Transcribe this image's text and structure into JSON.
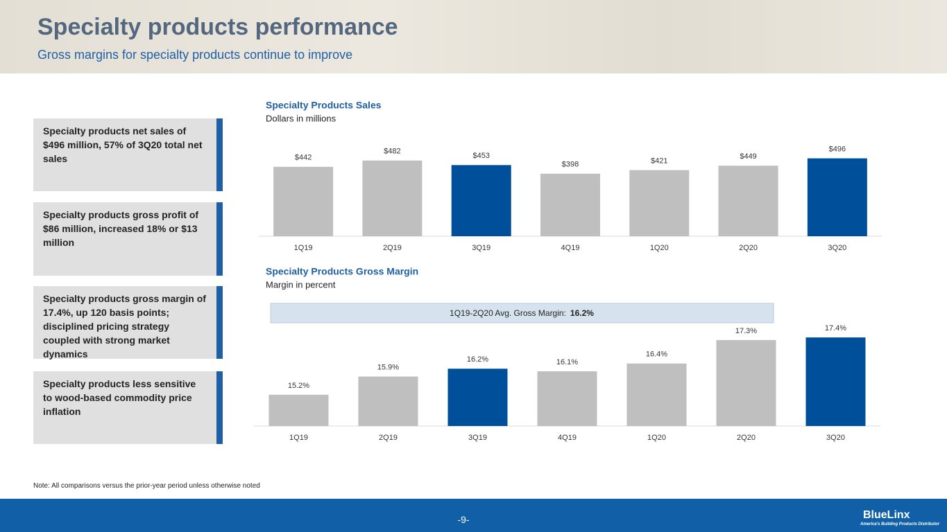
{
  "header": {
    "title": "Specialty products performance",
    "subtitle": "Gross margins for specialty products continue to improve"
  },
  "callouts": [
    "Specialty products net sales of $496 million, 57% of 3Q20 total net sales",
    "Specialty products gross profit of $86 million, increased 18% or $13 million",
    "Specialty products gross margin of 17.4%, up 120 basis points; disciplined pricing strategy coupled with strong market dynamics",
    "Specialty products less sensitive to wood-based commodity price inflation"
  ],
  "note": "Note:  All comparisons versus the prior-year period unless otherwise noted",
  "footer": {
    "page": "-9-",
    "logo": "BlueLinx",
    "tagline": "America's Building Products Distributor"
  },
  "chart_data": [
    {
      "type": "bar",
      "title": "Specialty Products Sales",
      "subtitle": "Dollars in millions",
      "categories": [
        "1Q19",
        "2Q19",
        "3Q19",
        "4Q19",
        "1Q20",
        "2Q20",
        "3Q20"
      ],
      "values": [
        442,
        482,
        453,
        398,
        421,
        449,
        496
      ],
      "value_labels": [
        "$442",
        "$482",
        "$453",
        "$398",
        "$421",
        "$449",
        "$496"
      ],
      "colors": [
        "#bfbfbf",
        "#bfbfbf",
        "#004f9a",
        "#bfbfbf",
        "#bfbfbf",
        "#bfbfbf",
        "#004f9a"
      ],
      "ylim": [
        0,
        600
      ]
    },
    {
      "type": "bar",
      "title": "Specialty Products Gross Margin",
      "subtitle": "Margin in percent",
      "annotation": {
        "label": "1Q19-2Q20 Avg. Gross Margin:",
        "value_label": "16.2%"
      },
      "categories": [
        "1Q19",
        "2Q19",
        "3Q19",
        "4Q19",
        "1Q20",
        "2Q20",
        "3Q20"
      ],
      "values": [
        15.2,
        15.9,
        16.2,
        16.1,
        16.4,
        17.3,
        17.4
      ],
      "value_labels": [
        "15.2%",
        "15.9%",
        "16.2%",
        "16.1%",
        "16.4%",
        "17.3%",
        "17.4%"
      ],
      "colors": [
        "#bfbfbf",
        "#bfbfbf",
        "#004f9a",
        "#bfbfbf",
        "#bfbfbf",
        "#bfbfbf",
        "#004f9a"
      ],
      "ylim": [
        14,
        18.6
      ]
    }
  ]
}
